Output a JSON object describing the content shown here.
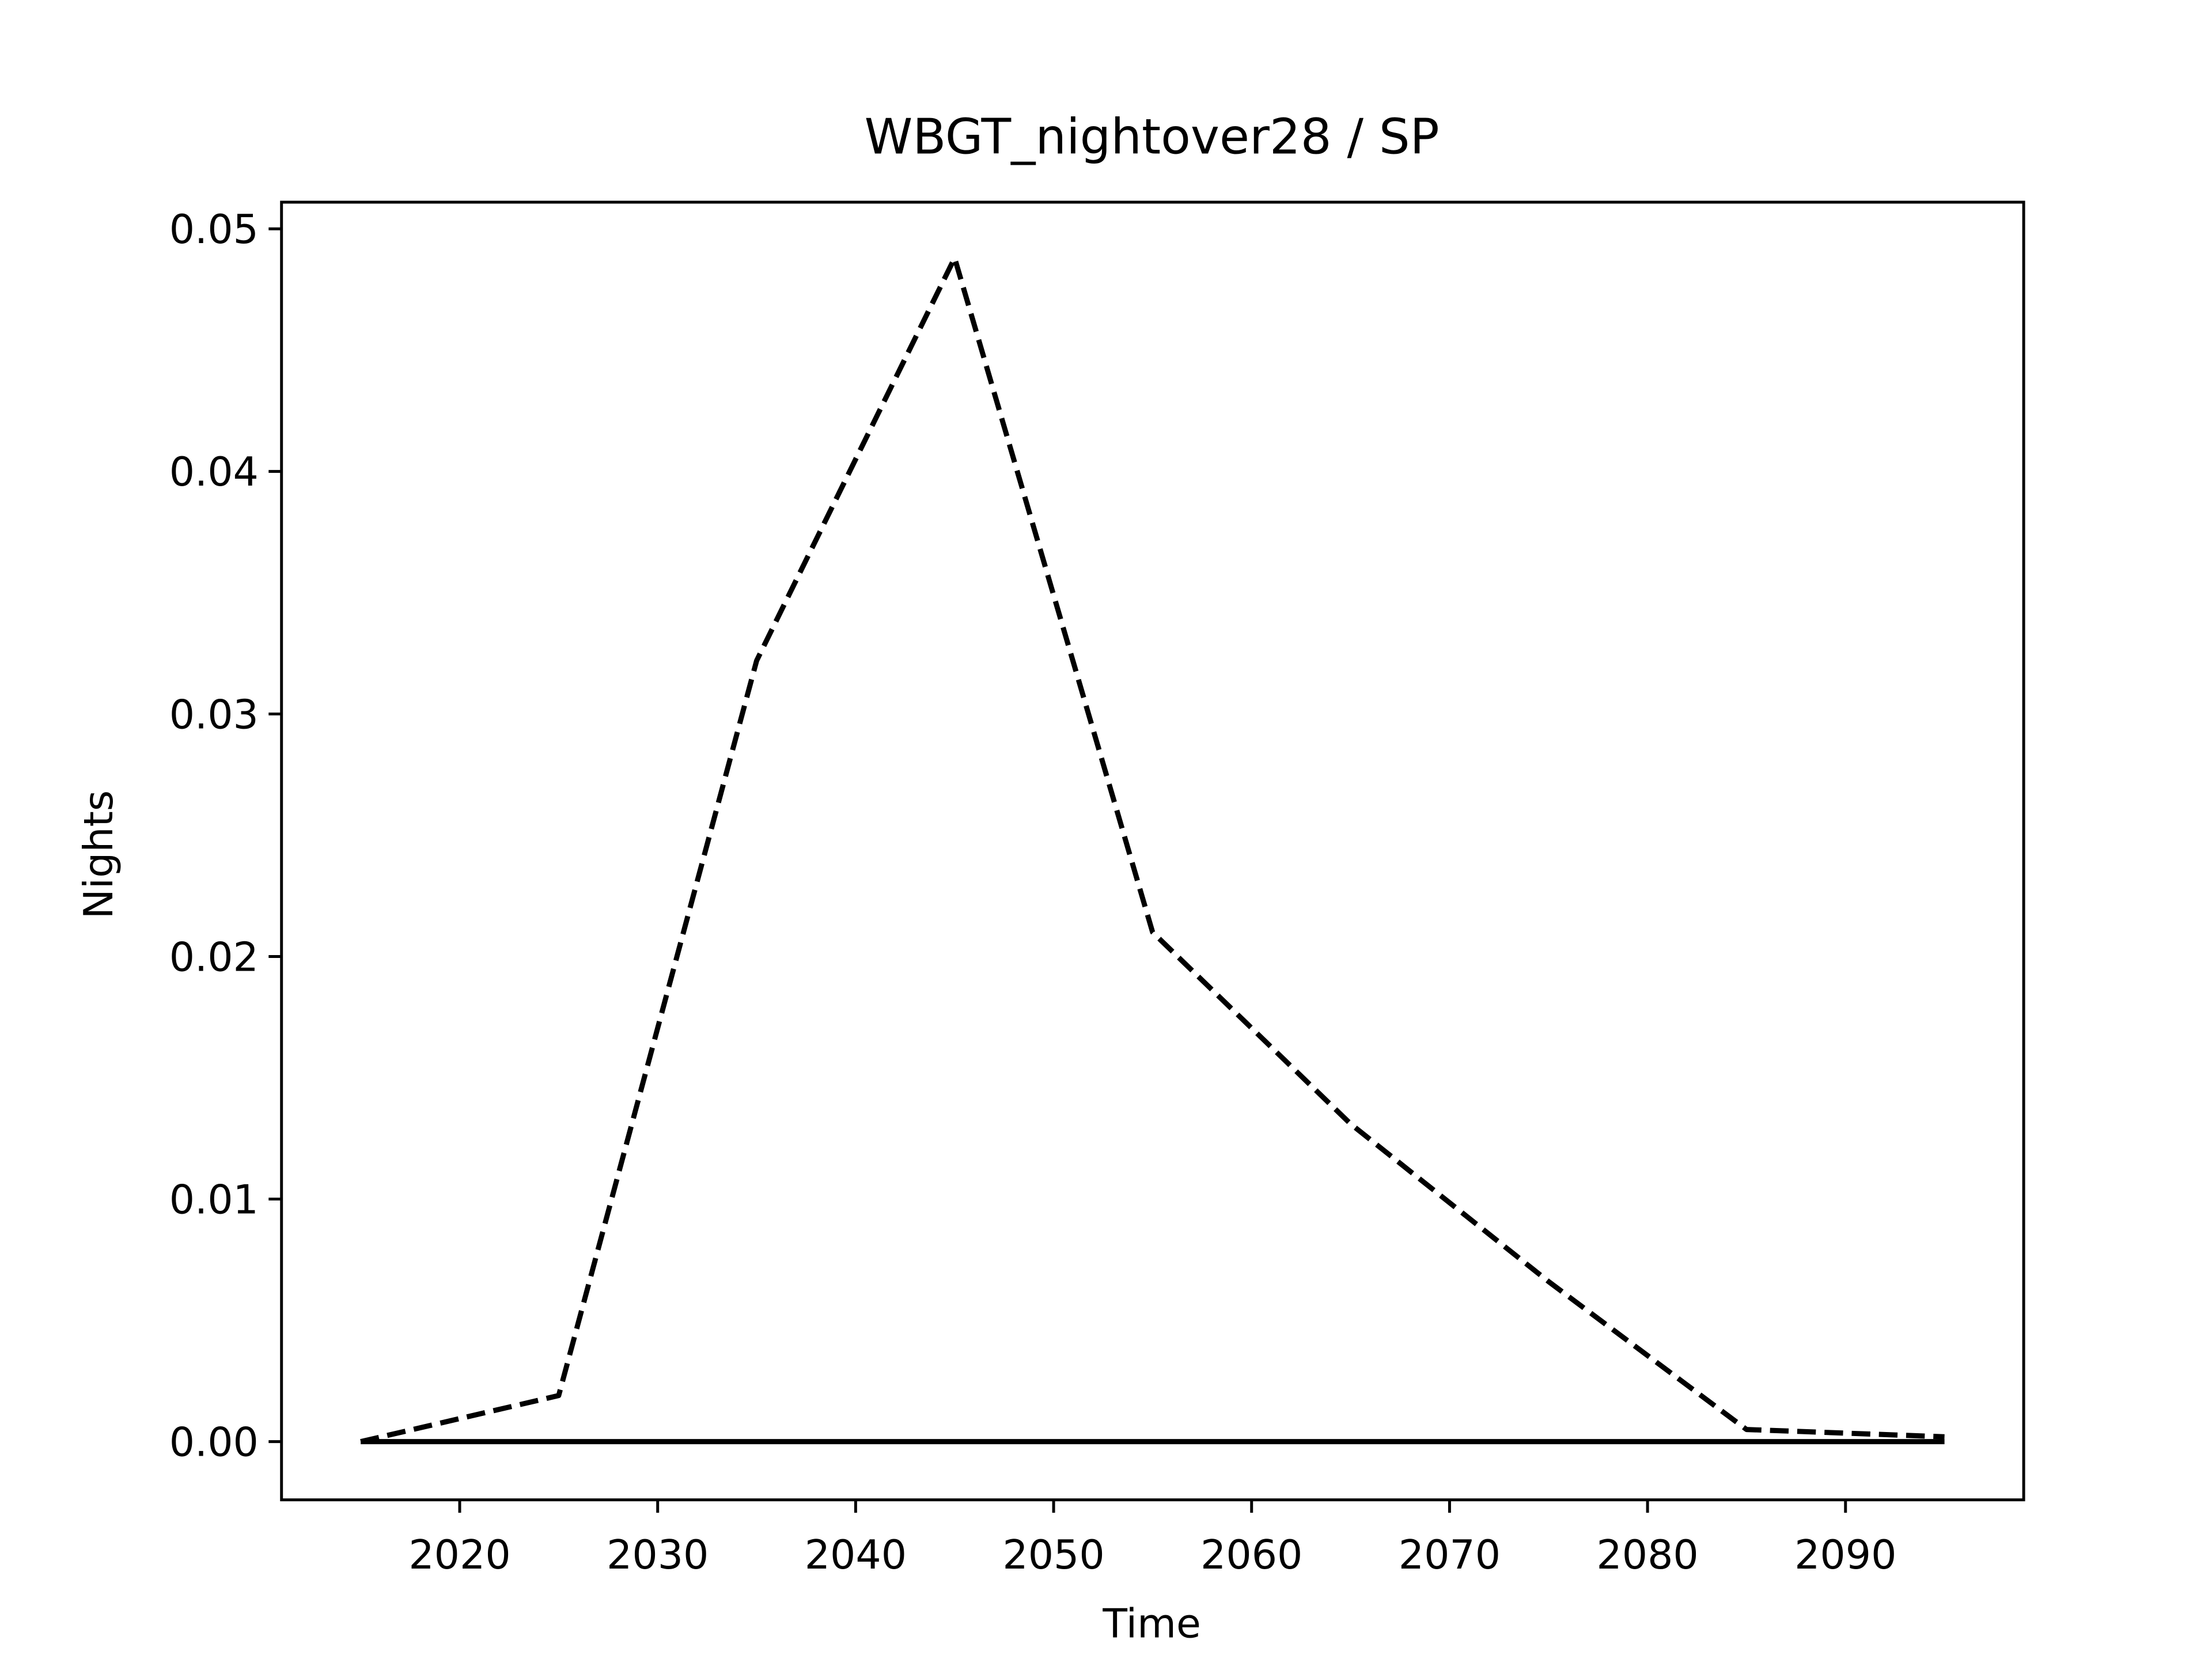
{
  "chart_data": {
    "type": "line",
    "title": "WBGT_nightover28 / SP",
    "x_label": "Time",
    "y_label": "Nights",
    "x": [
      2015,
      2025,
      2035,
      2045,
      2055,
      2065,
      2075,
      2085,
      2095
    ],
    "series": [
      {
        "color": "#000000",
        "dash": "dashed",
        "values": [
          0,
          0.0019,
          0.0322,
          0.0488,
          0.021,
          0.0131,
          0.0066,
          0.0005,
          0.0002
        ]
      },
      {
        "color": "#000000",
        "dash": "solid",
        "values": [
          0,
          0,
          0,
          0,
          0,
          0,
          0,
          0,
          0
        ]
      }
    ],
    "xlim": [
      2011,
      2099
    ],
    "ylim": [
      -0.0024,
      0.0511
    ],
    "xticks": [
      2020,
      2030,
      2040,
      2050,
      2060,
      2070,
      2080,
      2090
    ],
    "yticks": [
      {
        "value": 0,
        "label": "0.00"
      },
      0.01,
      0.02,
      0.03,
      0.04,
      0.05
    ],
    "grid": false
  }
}
